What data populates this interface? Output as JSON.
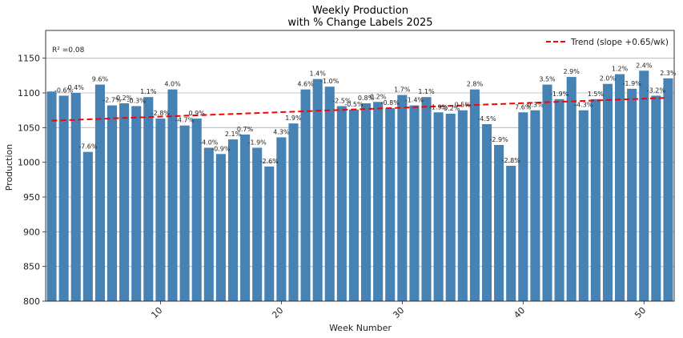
{
  "chart_data": {
    "type": "bar",
    "title_line1": "Weekly Production",
    "title_line2": "with % Change Labels 2025",
    "xlabel": "Week Number",
    "ylabel": "Production",
    "ylim": [
      800,
      1190
    ],
    "xlim": [
      0.5,
      52.5
    ],
    "yticks": [
      800,
      850,
      900,
      950,
      1000,
      1050,
      1100,
      1150
    ],
    "xticks": [
      10,
      20,
      30,
      40,
      50
    ],
    "grid": "y",
    "bar_color": "#4682b4",
    "trend_color": "#ff0000",
    "legend_position": "top-right",
    "legend_label": "Trend (slope +0.65/wk)",
    "r2_label": "R² =0.08",
    "trend": {
      "slope": 0.65,
      "start_week": 1,
      "start_value": 1060,
      "end_week": 52,
      "end_value": 1093
    },
    "x": [
      1,
      2,
      3,
      4,
      5,
      6,
      7,
      8,
      9,
      10,
      11,
      12,
      13,
      14,
      15,
      16,
      17,
      18,
      19,
      20,
      21,
      22,
      23,
      24,
      25,
      26,
      27,
      28,
      29,
      30,
      31,
      32,
      33,
      34,
      35,
      36,
      37,
      38,
      39,
      40,
      41,
      42,
      43,
      44,
      45,
      46,
      47,
      48,
      49,
      50,
      51,
      52
    ],
    "values": [
      1102,
      1096,
      1100,
      1015,
      1112,
      1082,
      1085,
      1081,
      1094,
      1063,
      1105,
      1053,
      1063,
      1021,
      1012,
      1033,
      1040,
      1021,
      994,
      1036,
      1056,
      1105,
      1120,
      1109,
      1081,
      1076,
      1085,
      1087,
      1078,
      1097,
      1082,
      1094,
      1072,
      1070,
      1075,
      1105,
      1055,
      1025,
      995,
      1072,
      1075,
      1112,
      1091,
      1123,
      1075,
      1091,
      1113,
      1127,
      1106,
      1132,
      1096,
      1121
    ],
    "labels": [
      "",
      "-0.6%",
      "0.4%",
      "-7.6%",
      "9.6%",
      "-2.7%",
      "0.2%",
      "-0.3%",
      "1.1%",
      "-2.8%",
      "4.0%",
      "-4.7%",
      "0.9%",
      "-4.0%",
      "-0.9%",
      "2.1%",
      "0.7%",
      "-1.9%",
      "-2.6%",
      "4.3%",
      "1.9%",
      "4.6%",
      "1.4%",
      "-1.0%",
      "-2.5%",
      "-0.5%",
      "0.8%",
      "0.2%",
      "-0.8%",
      "1.7%",
      "-1.4%",
      "1.1%",
      "-1.9%",
      "-0.2%",
      "0.5%",
      "2.8%",
      "-4.5%",
      "-2.9%",
      "-2.8%",
      "7.6%",
      "0.3%",
      "3.5%",
      "-1.9%",
      "2.9%",
      "-4.3%",
      "1.5%",
      "2.0%",
      "1.2%",
      "-1.9%",
      "2.4%",
      "-3.2%",
      "2.3%"
    ]
  }
}
